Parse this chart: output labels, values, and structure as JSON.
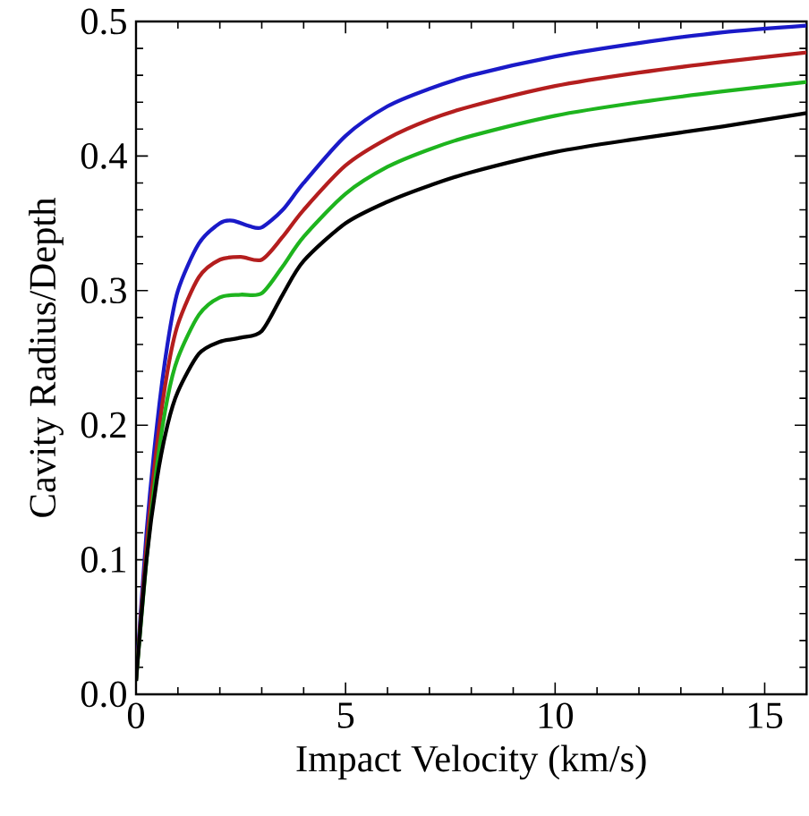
{
  "chart_data": {
    "type": "line",
    "xlabel": "Impact Velocity (km/s)",
    "ylabel": "Cavity Radius/Depth",
    "xlim": [
      0,
      16
    ],
    "ylim": [
      0,
      0.5
    ],
    "xticks": [
      0,
      5,
      10,
      15
    ],
    "yticks": [
      {
        "value": 0,
        "label": "0.0"
      },
      0.1,
      0.2,
      0.3,
      0.4,
      0.5
    ],
    "marker": "none",
    "line_style": "solid",
    "series": [
      {
        "color": "#1a1ac8",
        "x": [
          0,
          0.25,
          0.5,
          0.75,
          1,
          1.5,
          2,
          2.3,
          2.7,
          3,
          3.5,
          4,
          5,
          6,
          7,
          8,
          10,
          12,
          14,
          16
        ],
        "values": [
          0.01,
          0.12,
          0.2,
          0.26,
          0.3,
          0.335,
          0.35,
          0.352,
          0.348,
          0.347,
          0.36,
          0.38,
          0.415,
          0.437,
          0.45,
          0.46,
          0.474,
          0.484,
          0.492,
          0.497
        ]
      },
      {
        "color": "#b41e1e",
        "x": [
          0,
          0.25,
          0.5,
          0.75,
          1,
          1.5,
          2,
          2.5,
          3,
          3.5,
          4,
          5,
          6,
          7,
          8,
          10,
          12,
          14,
          16
        ],
        "values": [
          0.01,
          0.11,
          0.185,
          0.24,
          0.275,
          0.31,
          0.323,
          0.325,
          0.323,
          0.34,
          0.36,
          0.393,
          0.413,
          0.427,
          0.437,
          0.452,
          0.462,
          0.47,
          0.477
        ]
      },
      {
        "color": "#1eb41e",
        "x": [
          0,
          0.25,
          0.5,
          0.75,
          1,
          1.5,
          2,
          2.5,
          3,
          3.5,
          4,
          5,
          6,
          7,
          8,
          10,
          12,
          14,
          16
        ],
        "values": [
          0.01,
          0.1,
          0.17,
          0.22,
          0.25,
          0.282,
          0.295,
          0.297,
          0.298,
          0.318,
          0.34,
          0.372,
          0.392,
          0.405,
          0.415,
          0.43,
          0.44,
          0.448,
          0.455
        ]
      },
      {
        "color": "#000000",
        "x": [
          0,
          0.25,
          0.5,
          0.75,
          1,
          1.5,
          2,
          2.5,
          3,
          3.5,
          4,
          5,
          6,
          7,
          8,
          10,
          12,
          14,
          16
        ],
        "values": [
          0.01,
          0.1,
          0.16,
          0.2,
          0.225,
          0.253,
          0.262,
          0.265,
          0.27,
          0.297,
          0.322,
          0.35,
          0.366,
          0.378,
          0.388,
          0.403,
          0.413,
          0.422,
          0.432
        ]
      }
    ]
  }
}
